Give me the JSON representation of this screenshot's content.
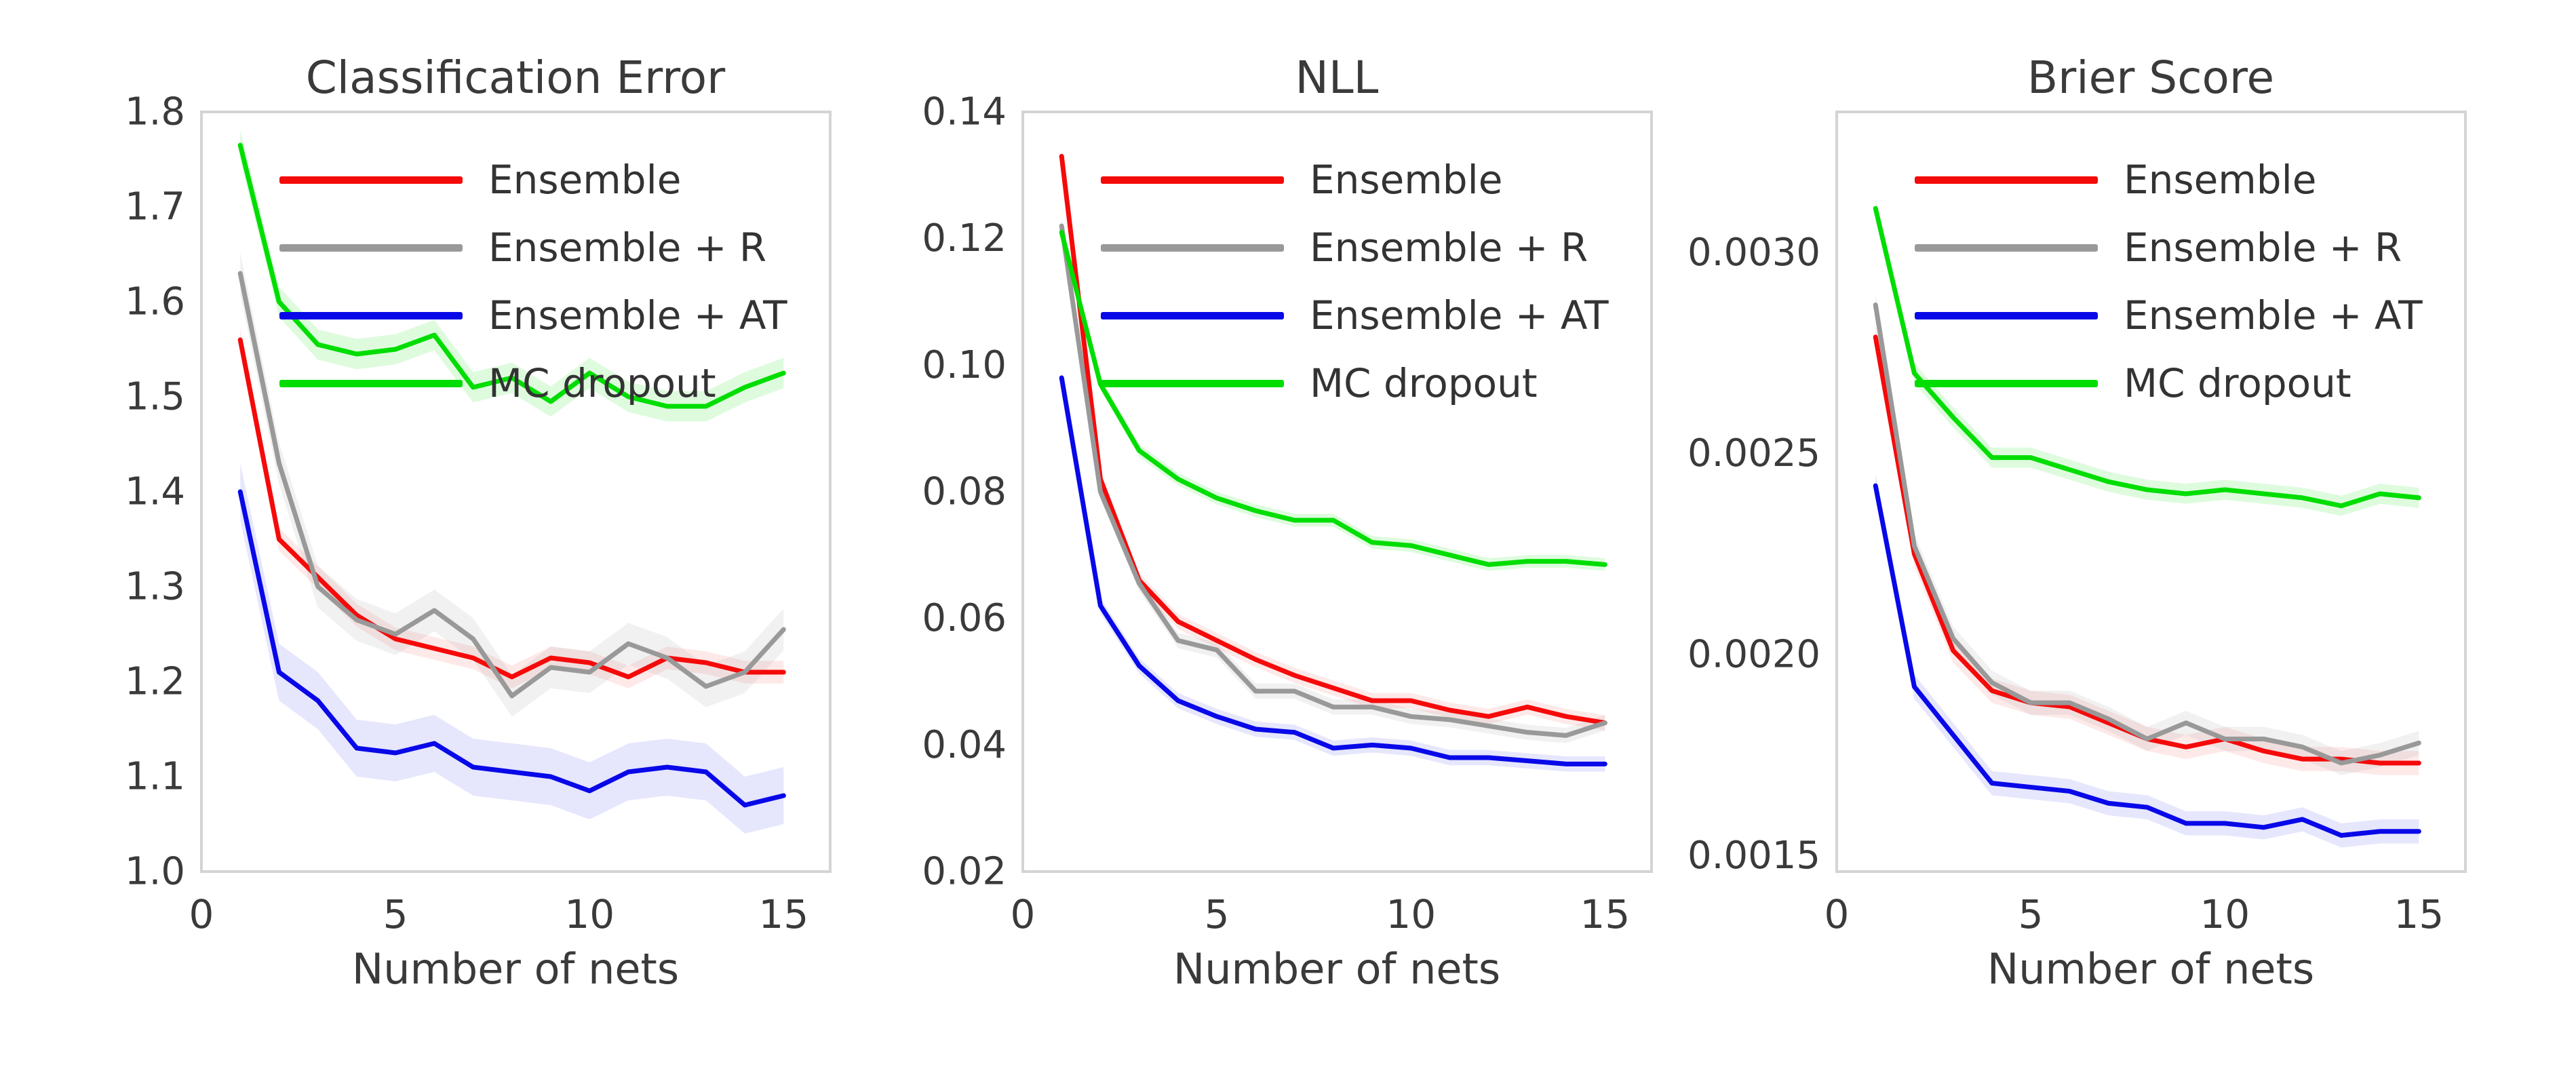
{
  "figure": {
    "background": "#ffffff",
    "text_color": "#3a3a3a",
    "spine_color": "#d4d4d4"
  },
  "chart_data": [
    {
      "type": "line",
      "title": "Classification Error",
      "xlabel": "Number of nets",
      "x": [
        1,
        2,
        3,
        4,
        5,
        6,
        7,
        8,
        9,
        10,
        11,
        12,
        13,
        14,
        15
      ],
      "xlim": [
        0,
        16.2
      ],
      "xticks": [
        0,
        5,
        10,
        15
      ],
      "ylim": [
        1.0,
        1.8
      ],
      "yticks": [
        1.0,
        1.1,
        1.2,
        1.3,
        1.4,
        1.5,
        1.6,
        1.7,
        1.8
      ],
      "ytick_labels": [
        "1.0",
        "1.1",
        "1.2",
        "1.3",
        "1.4",
        "1.5",
        "1.6",
        "1.7",
        "1.8"
      ],
      "grid": false,
      "legend_position": "upper-left-inside",
      "series": [
        {
          "name": "Ensemble",
          "color": "#f50a0a",
          "band_halfwidth": 0.012,
          "band_opacity": 0.09,
          "values": [
            1.56,
            1.35,
            1.31,
            1.27,
            1.245,
            1.235,
            1.225,
            1.205,
            1.225,
            1.22,
            1.205,
            1.225,
            1.22,
            1.21,
            1.21
          ]
        },
        {
          "name": "Ensemble + R",
          "color": "#999999",
          "band_halfwidth": 0.022,
          "band_opacity": 0.14,
          "values": [
            1.63,
            1.43,
            1.3,
            1.265,
            1.25,
            1.275,
            1.245,
            1.185,
            1.215,
            1.21,
            1.24,
            1.225,
            1.195,
            1.21,
            1.255
          ]
        },
        {
          "name": "Ensemble + AT",
          "color": "#0808e8",
          "band_halfwidth": 0.03,
          "band_opacity": 0.1,
          "values": [
            1.4,
            1.21,
            1.18,
            1.13,
            1.125,
            1.135,
            1.11,
            1.105,
            1.1,
            1.085,
            1.105,
            1.11,
            1.105,
            1.07,
            1.08
          ]
        },
        {
          "name": "MC dropout",
          "color": "#00dd00",
          "band_halfwidth": 0.016,
          "band_opacity": 0.13,
          "values": [
            1.765,
            1.6,
            1.555,
            1.545,
            1.55,
            1.565,
            1.51,
            1.52,
            1.495,
            1.525,
            1.5,
            1.49,
            1.49,
            1.51,
            1.525
          ]
        }
      ]
    },
    {
      "type": "line",
      "title": "NLL",
      "xlabel": "Number of nets",
      "x": [
        1,
        2,
        3,
        4,
        5,
        6,
        7,
        8,
        9,
        10,
        11,
        12,
        13,
        14,
        15
      ],
      "xlim": [
        0,
        16.2
      ],
      "xticks": [
        0,
        5,
        10,
        15
      ],
      "ylim": [
        0.02,
        0.14
      ],
      "yticks": [
        0.02,
        0.04,
        0.06,
        0.08,
        0.1,
        0.12,
        0.14
      ],
      "ytick_labels": [
        "0.02",
        "0.04",
        "0.06",
        "0.08",
        "0.10",
        "0.12",
        "0.14"
      ],
      "grid": false,
      "legend_position": "upper-left-inside",
      "series": [
        {
          "name": "Ensemble",
          "color": "#f50a0a",
          "band_halfwidth": 0.0012,
          "band_opacity": 0.09,
          "values": [
            0.133,
            0.082,
            0.066,
            0.0595,
            0.0565,
            0.0535,
            0.051,
            0.049,
            0.047,
            0.047,
            0.0455,
            0.0445,
            0.046,
            0.0445,
            0.0435
          ]
        },
        {
          "name": "Ensemble + R",
          "color": "#999999",
          "band_halfwidth": 0.0012,
          "band_opacity": 0.14,
          "values": [
            0.122,
            0.08,
            0.0655,
            0.0565,
            0.055,
            0.0485,
            0.0485,
            0.046,
            0.046,
            0.0445,
            0.044,
            0.043,
            0.042,
            0.0415,
            0.0435
          ]
        },
        {
          "name": "Ensemble + AT",
          "color": "#0808e8",
          "band_halfwidth": 0.0012,
          "band_opacity": 0.1,
          "values": [
            0.098,
            0.062,
            0.0525,
            0.047,
            0.0445,
            0.0425,
            0.042,
            0.0395,
            0.04,
            0.0395,
            0.038,
            0.038,
            0.0375,
            0.037,
            0.037
          ]
        },
        {
          "name": "MC dropout",
          "color": "#00dd00",
          "band_halfwidth": 0.001,
          "band_opacity": 0.13,
          "values": [
            0.121,
            0.097,
            0.0865,
            0.082,
            0.079,
            0.077,
            0.0755,
            0.0755,
            0.072,
            0.0715,
            0.07,
            0.0685,
            0.069,
            0.069,
            0.0685
          ]
        }
      ]
    },
    {
      "type": "line",
      "title": "Brier Score",
      "xlabel": "Number of nets",
      "x": [
        1,
        2,
        3,
        4,
        5,
        6,
        7,
        8,
        9,
        10,
        11,
        12,
        13,
        14,
        15
      ],
      "xlim": [
        0,
        16.2
      ],
      "xticks": [
        0,
        5,
        10,
        15
      ],
      "ylim": [
        0.00146,
        0.00335
      ],
      "yticks": [
        0.0015,
        0.002,
        0.0025,
        0.003
      ],
      "ytick_labels": [
        "0.0015",
        "0.0020",
        "0.0025",
        "0.0030"
      ],
      "grid": false,
      "legend_position": "upper-left-inside",
      "series": [
        {
          "name": "Ensemble",
          "color": "#f50a0a",
          "band_halfwidth": 3e-05,
          "band_opacity": 0.09,
          "values": [
            0.00279,
            0.00225,
            0.00201,
            0.00191,
            0.00188,
            0.00187,
            0.00183,
            0.00179,
            0.00177,
            0.00179,
            0.00176,
            0.00174,
            0.00174,
            0.00173,
            0.00173
          ]
        },
        {
          "name": "Ensemble + R",
          "color": "#999999",
          "band_halfwidth": 3e-05,
          "band_opacity": 0.14,
          "values": [
            0.00287,
            0.00227,
            0.00204,
            0.00193,
            0.00188,
            0.00188,
            0.00184,
            0.00179,
            0.00183,
            0.00179,
            0.00179,
            0.00177,
            0.00173,
            0.00175,
            0.00178
          ]
        },
        {
          "name": "Ensemble + AT",
          "color": "#0808e8",
          "band_halfwidth": 3e-05,
          "band_opacity": 0.1,
          "values": [
            0.00242,
            0.00192,
            0.0018,
            0.00168,
            0.00167,
            0.00166,
            0.00163,
            0.00162,
            0.00158,
            0.00158,
            0.00157,
            0.00159,
            0.00155,
            0.00156,
            0.00156
          ]
        },
        {
          "name": "MC dropout",
          "color": "#00dd00",
          "band_halfwidth": 2.5e-05,
          "band_opacity": 0.13,
          "values": [
            0.00311,
            0.0027,
            0.00259,
            0.00249,
            0.00249,
            0.00246,
            0.00243,
            0.00241,
            0.0024,
            0.00241,
            0.0024,
            0.00239,
            0.00237,
            0.0024,
            0.00239
          ]
        }
      ]
    }
  ]
}
